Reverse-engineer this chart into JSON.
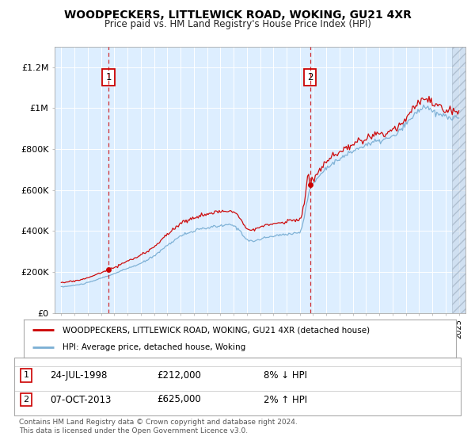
{
  "title": "WOODPECKERS, LITTLEWICK ROAD, WOKING, GU21 4XR",
  "subtitle": "Price paid vs. HM Land Registry's House Price Index (HPI)",
  "background_color": "#ffffff",
  "plot_bg_color": "#ddeeff",
  "grid_color": "#ffffff",
  "red_line_color": "#cc0000",
  "blue_line_color": "#7bafd4",
  "sale1_year": 1998.56,
  "sale1_price": 212000,
  "sale2_year": 2013.77,
  "sale2_price": 625000,
  "ylim_min": 0,
  "ylim_max": 1300000,
  "xmin": 1994.5,
  "xmax": 2025.5,
  "legend_line1": "WOODPECKERS, LITTLEWICK ROAD, WOKING, GU21 4XR (detached house)",
  "legend_line2": "HPI: Average price, detached house, Woking",
  "table_row1": [
    "1",
    "24-JUL-1998",
    "£212,000",
    "8% ↓ HPI"
  ],
  "table_row2": [
    "2",
    "07-OCT-2013",
    "£625,000",
    "2% ↑ HPI"
  ],
  "footer": "Contains HM Land Registry data © Crown copyright and database right 2024.\nThis data is licensed under the Open Government Licence v3.0.",
  "yticks": [
    0,
    200000,
    400000,
    600000,
    800000,
    1000000,
    1200000
  ],
  "ytick_labels": [
    "£0",
    "£200K",
    "£400K",
    "£600K",
    "£800K",
    "£1M",
    "£1.2M"
  ]
}
